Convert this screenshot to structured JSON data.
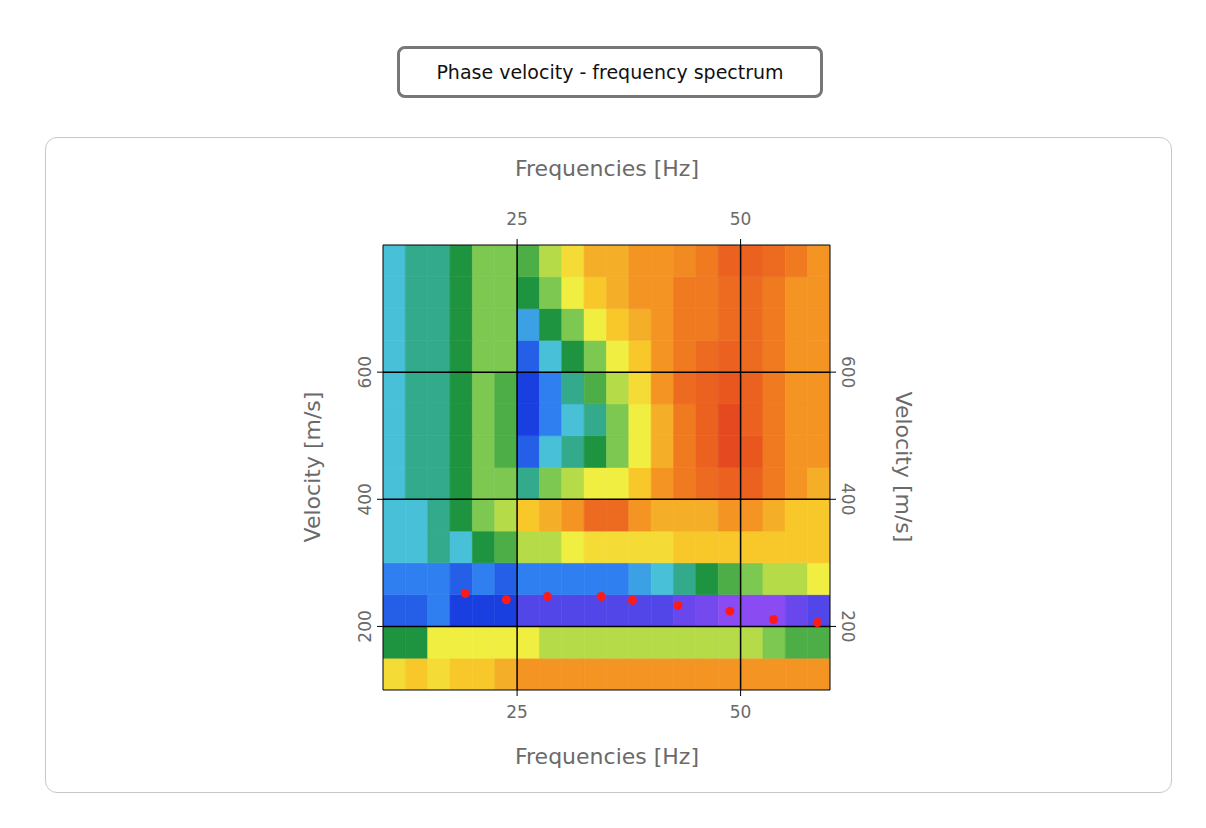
{
  "chart_data": {
    "type": "heatmap",
    "title": "Phase velocity - frequency spectrum",
    "x_label": "Frequencies [Hz]",
    "y_label": "Velocity [m/s]",
    "xlim": [
      10,
      60
    ],
    "ylim": [
      100,
      800
    ],
    "xticks": [
      25,
      50
    ],
    "yticks": [
      200,
      400,
      600
    ],
    "grid": true,
    "heatmap": {
      "x_bins": [
        10,
        12.5,
        15,
        17.5,
        20,
        22.5,
        25,
        27.5,
        30,
        32.5,
        35,
        37.5,
        40,
        42.5,
        45,
        47.5,
        50,
        52.5,
        55,
        57.5,
        60
      ],
      "y_bins": [
        100,
        150,
        200,
        250,
        300,
        350,
        400,
        450,
        500,
        550,
        600,
        650,
        700,
        750,
        800
      ],
      "z_range": [
        0,
        1
      ],
      "cells": [
        [
          0.35,
          0.3,
          0.35,
          0.3,
          0.3,
          0.25,
          0.2,
          0.2,
          0.2,
          0.2,
          0.2,
          0.2,
          0.2,
          0.2,
          0.2,
          0.2,
          0.2,
          0.2,
          0.2,
          0.2
        ],
        [
          0.6,
          0.6,
          0.4,
          0.4,
          0.4,
          0.4,
          0.4,
          0.45,
          0.45,
          0.45,
          0.45,
          0.45,
          0.45,
          0.45,
          0.45,
          0.45,
          0.45,
          0.5,
          0.55,
          0.55
        ],
        [
          0.85,
          0.85,
          0.8,
          0.9,
          0.9,
          0.9,
          0.95,
          0.95,
          0.95,
          0.95,
          0.95,
          0.95,
          0.95,
          0.97,
          0.98,
          1,
          1,
          1,
          0.97,
          0.95
        ],
        [
          0.8,
          0.8,
          0.8,
          0.85,
          0.8,
          0.85,
          0.8,
          0.8,
          0.8,
          0.8,
          0.8,
          0.75,
          0.7,
          0.65,
          0.6,
          0.55,
          0.5,
          0.45,
          0.45,
          0.4
        ],
        [
          0.7,
          0.7,
          0.65,
          0.7,
          0.6,
          0.55,
          0.45,
          0.45,
          0.4,
          0.35,
          0.35,
          0.35,
          0.35,
          0.3,
          0.3,
          0.3,
          0.3,
          0.3,
          0.3,
          0.3
        ],
        [
          0.7,
          0.7,
          0.65,
          0.6,
          0.5,
          0.45,
          0.3,
          0.25,
          0.2,
          0.12,
          0.12,
          0.2,
          0.25,
          0.25,
          0.25,
          0.2,
          0.2,
          0.25,
          0.3,
          0.3
        ],
        [
          0.7,
          0.65,
          0.65,
          0.6,
          0.5,
          0.5,
          0.65,
          0.5,
          0.45,
          0.4,
          0.4,
          0.3,
          0.2,
          0.15,
          0.12,
          0.1,
          0.1,
          0.15,
          0.2,
          0.25
        ],
        [
          0.7,
          0.65,
          0.65,
          0.6,
          0.5,
          0.55,
          0.85,
          0.7,
          0.65,
          0.6,
          0.5,
          0.4,
          0.25,
          0.15,
          0.1,
          0.05,
          0.08,
          0.15,
          0.2,
          0.2
        ],
        [
          0.7,
          0.65,
          0.65,
          0.6,
          0.5,
          0.55,
          0.9,
          0.8,
          0.7,
          0.65,
          0.5,
          0.4,
          0.25,
          0.15,
          0.1,
          0.05,
          0.1,
          0.15,
          0.2,
          0.2
        ],
        [
          0.7,
          0.65,
          0.65,
          0.6,
          0.5,
          0.55,
          0.9,
          0.8,
          0.65,
          0.55,
          0.45,
          0.35,
          0.2,
          0.12,
          0.1,
          0.08,
          0.1,
          0.15,
          0.2,
          0.2
        ],
        [
          0.7,
          0.65,
          0.65,
          0.6,
          0.5,
          0.5,
          0.85,
          0.7,
          0.6,
          0.5,
          0.4,
          0.3,
          0.2,
          0.15,
          0.12,
          0.1,
          0.12,
          0.15,
          0.2,
          0.2
        ],
        [
          0.7,
          0.65,
          0.65,
          0.6,
          0.5,
          0.5,
          0.75,
          0.6,
          0.5,
          0.4,
          0.3,
          0.25,
          0.2,
          0.15,
          0.15,
          0.12,
          0.12,
          0.15,
          0.2,
          0.2
        ],
        [
          0.7,
          0.65,
          0.65,
          0.6,
          0.5,
          0.5,
          0.6,
          0.5,
          0.4,
          0.3,
          0.25,
          0.2,
          0.2,
          0.15,
          0.15,
          0.12,
          0.12,
          0.15,
          0.2,
          0.2
        ],
        [
          0.7,
          0.65,
          0.65,
          0.6,
          0.5,
          0.5,
          0.55,
          0.45,
          0.35,
          0.25,
          0.25,
          0.2,
          0.2,
          0.18,
          0.15,
          0.1,
          0.1,
          0.12,
          0.15,
          0.2
        ]
      ]
    },
    "scatter": {
      "x": [
        19.2,
        23.8,
        28.4,
        34.4,
        37.9,
        43,
        48.8,
        53.7,
        58.6
      ],
      "y": [
        252,
        242,
        247,
        247,
        241,
        233,
        224,
        211,
        206
      ],
      "color": "#ff1a1a",
      "marker": "circle"
    }
  }
}
